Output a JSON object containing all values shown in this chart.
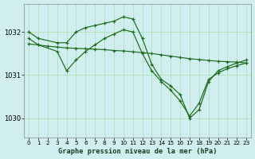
{
  "title": "Graphe pression niveau de la mer (hPa)",
  "background_color": "#d0eef0",
  "grid_color": "#aaddaa",
  "line_color": "#1a6b1a",
  "xlim": [
    -0.5,
    23.5
  ],
  "ylim": [
    1029.55,
    1032.65
  ],
  "yticks": [
    1030,
    1031,
    1032
  ],
  "xticks": [
    0,
    1,
    2,
    3,
    4,
    5,
    6,
    7,
    8,
    9,
    10,
    11,
    12,
    13,
    14,
    15,
    16,
    17,
    18,
    19,
    20,
    21,
    22,
    23
  ],
  "series": [
    {
      "x": [
        0,
        1,
        3,
        4,
        5,
        6,
        7,
        8,
        9,
        10,
        11,
        12,
        13,
        14,
        15,
        16,
        17,
        18,
        19,
        20,
        21,
        22,
        23
      ],
      "y": [
        1032.0,
        1031.85,
        1031.75,
        1031.75,
        1032.0,
        1032.1,
        1032.15,
        1032.2,
        1032.25,
        1032.35,
        1032.3,
        1031.85,
        1031.25,
        1030.9,
        1030.75,
        1030.55,
        1030.0,
        1030.2,
        1030.85,
        1031.1,
        1031.2,
        1031.28,
        1031.35
      ]
    },
    {
      "x": [
        0,
        1,
        3,
        4,
        5,
        6,
        7,
        8,
        9,
        10,
        11,
        12,
        13,
        14,
        15,
        16,
        17,
        18,
        19,
        20,
        21,
        22,
        23
      ],
      "y": [
        1031.85,
        1031.7,
        1031.55,
        1031.1,
        1031.35,
        1031.55,
        1031.7,
        1031.85,
        1031.95,
        1032.05,
        1032.0,
        1031.5,
        1031.1,
        1030.85,
        1030.65,
        1030.4,
        1030.05,
        1030.35,
        1030.9,
        1031.05,
        1031.15,
        1031.22,
        1031.28
      ]
    },
    {
      "x": [
        0,
        1,
        2,
        3,
        4,
        5,
        6,
        7,
        8,
        9,
        10,
        11,
        12,
        13,
        14,
        15,
        16,
        17,
        18,
        19,
        20,
        21,
        22,
        23
      ],
      "y": [
        1031.72,
        1031.7,
        1031.67,
        1031.65,
        1031.63,
        1031.62,
        1031.61,
        1031.6,
        1031.59,
        1031.57,
        1031.56,
        1031.54,
        1031.52,
        1031.5,
        1031.47,
        1031.44,
        1031.41,
        1031.38,
        1031.36,
        1031.34,
        1031.32,
        1031.31,
        1031.3,
        1031.28
      ]
    }
  ]
}
